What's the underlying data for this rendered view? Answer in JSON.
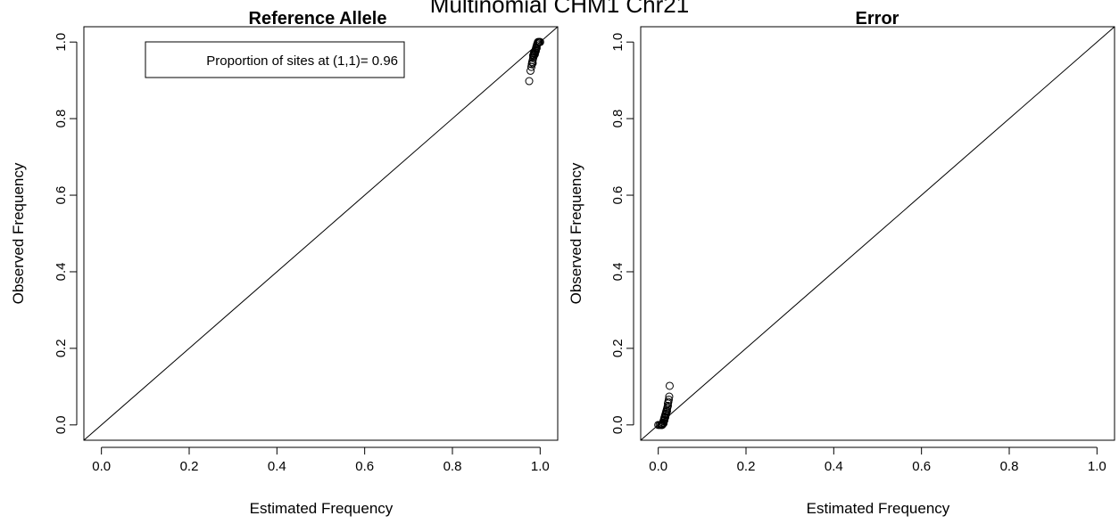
{
  "figure": {
    "main_title": "Multinomial CHM1 Chr21"
  },
  "colors": {
    "background": "#ffffff",
    "ink": "#000000"
  },
  "chart_data": [
    {
      "type": "scatter",
      "title": "Reference Allele",
      "xlabel": "Estimated Frequency",
      "ylabel": "Observed Frequency",
      "xlim": [
        -0.04,
        1.04
      ],
      "ylim": [
        -0.04,
        1.04
      ],
      "xticks": [
        0.0,
        0.2,
        0.4,
        0.6,
        0.8,
        1.0
      ],
      "xtick_labels": [
        "0.0",
        "0.2",
        "0.4",
        "0.6",
        "0.8",
        "1.0"
      ],
      "yticks": [
        0.0,
        0.2,
        0.4,
        0.6,
        0.8,
        1.0
      ],
      "ytick_labels": [
        "0.0",
        "0.2",
        "0.4",
        "0.6",
        "0.8",
        "1.0"
      ],
      "grid": false,
      "reference_line": "y = x",
      "marker": "open-circle",
      "legend": {
        "placement": "top-left",
        "text": "Proportion of sites at (1,1)= 0.96"
      },
      "points": [
        [
          0.975,
          0.898
        ],
        [
          0.978,
          0.925
        ],
        [
          0.98,
          0.935
        ],
        [
          0.981,
          0.942
        ],
        [
          0.982,
          0.948
        ],
        [
          0.983,
          0.953
        ],
        [
          0.984,
          0.958
        ],
        [
          0.985,
          0.962
        ],
        [
          0.986,
          0.966
        ],
        [
          0.987,
          0.97
        ],
        [
          0.988,
          0.974
        ],
        [
          0.989,
          0.978
        ],
        [
          0.99,
          0.982
        ],
        [
          0.991,
          0.986
        ],
        [
          0.992,
          0.99
        ],
        [
          0.993,
          0.994
        ],
        [
          0.994,
          0.997
        ],
        [
          0.995,
          1.0
        ],
        [
          0.997,
          1.0
        ],
        [
          0.999,
          1.0
        ],
        [
          1.0,
          1.0
        ],
        [
          0.996,
          0.999
        ],
        [
          0.988,
          0.968
        ],
        [
          0.986,
          0.972
        ],
        [
          0.984,
          0.965
        ],
        [
          0.99,
          0.976
        ],
        [
          0.992,
          0.984
        ],
        [
          0.983,
          0.945
        ]
      ]
    },
    {
      "type": "scatter",
      "title": "Error",
      "xlabel": "Estimated Frequency",
      "ylabel": "Observed Frequency",
      "xlim": [
        -0.04,
        1.04
      ],
      "ylim": [
        -0.04,
        1.04
      ],
      "xticks": [
        0.0,
        0.2,
        0.4,
        0.6,
        0.8,
        1.0
      ],
      "xtick_labels": [
        "0.0",
        "0.2",
        "0.4",
        "0.6",
        "0.8",
        "1.0"
      ],
      "yticks": [
        0.0,
        0.2,
        0.4,
        0.6,
        0.8,
        1.0
      ],
      "ytick_labels": [
        "0.0",
        "0.2",
        "0.4",
        "0.6",
        "0.8",
        "1.0"
      ],
      "grid": false,
      "reference_line": "y = x",
      "marker": "open-circle",
      "points": [
        [
          0.0,
          0.0
        ],
        [
          0.003,
          0.0
        ],
        [
          0.006,
          0.0
        ],
        [
          0.008,
          0.0
        ],
        [
          0.01,
          0.002
        ],
        [
          0.011,
          0.006
        ],
        [
          0.012,
          0.01
        ],
        [
          0.013,
          0.014
        ],
        [
          0.014,
          0.018
        ],
        [
          0.015,
          0.022
        ],
        [
          0.016,
          0.026
        ],
        [
          0.017,
          0.03
        ],
        [
          0.018,
          0.034
        ],
        [
          0.019,
          0.038
        ],
        [
          0.02,
          0.042
        ],
        [
          0.021,
          0.046
        ],
        [
          0.022,
          0.05
        ],
        [
          0.022,
          0.056
        ],
        [
          0.023,
          0.06
        ],
        [
          0.024,
          0.066
        ],
        [
          0.025,
          0.074
        ],
        [
          0.026,
          0.102
        ],
        [
          0.012,
          0.004
        ],
        [
          0.014,
          0.012
        ],
        [
          0.016,
          0.02
        ],
        [
          0.018,
          0.028
        ],
        [
          0.02,
          0.036
        ],
        [
          0.009,
          0.0
        ]
      ]
    }
  ]
}
